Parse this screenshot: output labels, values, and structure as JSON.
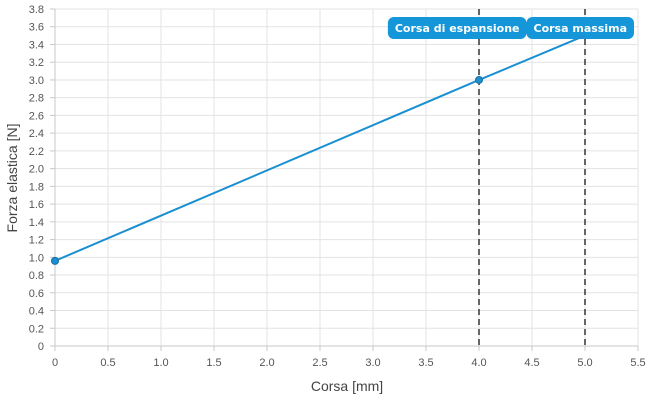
{
  "chart_data": {
    "type": "line",
    "xlabel": "Corsa [mm]",
    "ylabel": "Forza elastica [N]",
    "xlim": [
      0,
      5.5
    ],
    "ylim": [
      0,
      3.8
    ],
    "x_ticks": [
      "0",
      "0.5",
      "1.0",
      "1.5",
      "2.0",
      "2.5",
      "3.0",
      "3.5",
      "4.0",
      "4.5",
      "5.0",
      "5.5"
    ],
    "y_ticks": [
      "0",
      "0.2",
      "0.4",
      "0.6",
      "0.8",
      "1.0",
      "1.2",
      "1.4",
      "1.6",
      "1.8",
      "2.0",
      "2.2",
      "2.4",
      "2.6",
      "2.8",
      "3.0",
      "3.2",
      "3.4",
      "3.6",
      "3.8"
    ],
    "grid": true,
    "series": [
      {
        "color": "#1a8fd1",
        "x": [
          0,
          4.0,
          5.0
        ],
        "y": [
          0.96,
          3.0,
          3.5
        ],
        "markers_at": [
          0,
          1
        ]
      }
    ],
    "markers": [
      {
        "label": "Corsa di espansione",
        "x": 4.0
      },
      {
        "label": "Corsa massima",
        "x": 5.0
      }
    ],
    "marker_label_color": "#1596d8"
  }
}
